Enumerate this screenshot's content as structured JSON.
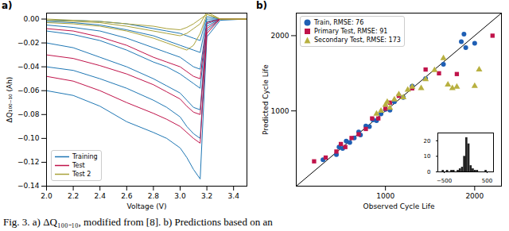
{
  "caption": "Fig. 3.   a) ΔQ₁₀₀₋₁₀, modified from [8]. b) Predictions based on an",
  "chart_data": [
    {
      "type": "line",
      "title": "a)",
      "x_label": "Voltage (V)",
      "y_label": "ΔQ₁₀₀₋₁₀ (Ah)",
      "x": [
        2.0,
        2.2,
        2.4,
        2.6,
        2.8,
        2.9,
        3.0,
        3.05,
        3.1,
        3.15,
        3.2,
        3.3,
        3.5
      ],
      "xlim": [
        2.0,
        3.5
      ],
      "xticks": [
        {
          "value": 2.0,
          "label": "2.0"
        },
        {
          "value": 2.2,
          "label": "2.2"
        },
        {
          "value": 2.4,
          "label": "2.4"
        },
        {
          "value": 2.6,
          "label": "2.6"
        },
        {
          "value": 2.8,
          "label": "2.8"
        },
        {
          "value": 3.0,
          "label": "3.0"
        },
        {
          "value": 3.2,
          "label": "3.2"
        },
        {
          "value": 3.4,
          "label": "3.4"
        }
      ],
      "ylim": [
        -0.14,
        0.005
      ],
      "yticks": [
        {
          "value": -0.14,
          "label": "−0.14"
        },
        {
          "value": -0.12,
          "label": "−0.12"
        },
        {
          "value": -0.1,
          "label": "−0.10"
        },
        {
          "value": -0.08,
          "label": "−0.08"
        },
        {
          "value": -0.06,
          "label": "−0.06"
        },
        {
          "value": -0.04,
          "label": "−0.04"
        },
        {
          "value": -0.02,
          "label": "−0.02"
        },
        {
          "value": 0,
          "label": "0.00"
        }
      ],
      "legend": "lower-left",
      "series": [
        {
          "name": "Training",
          "color": "#1f77b4",
          "curves": [
            [
              -0.06,
              -0.064,
              -0.073,
              -0.086,
              -0.095,
              -0.1,
              -0.108,
              -0.116,
              -0.126,
              -0.134,
              -0.015,
              -0.001,
              0.0
            ],
            [
              -0.04,
              -0.043,
              -0.05,
              -0.058,
              -0.068,
              -0.074,
              -0.082,
              -0.09,
              -0.096,
              -0.1,
              -0.01,
              0.0,
              0.0
            ],
            [
              -0.02,
              -0.024,
              -0.032,
              -0.04,
              -0.05,
              -0.056,
              -0.062,
              -0.068,
              -0.074,
              -0.076,
              -0.006,
              0.0,
              0.0
            ],
            [
              -0.01,
              -0.013,
              -0.018,
              -0.026,
              -0.036,
              -0.04,
              -0.046,
              -0.05,
              -0.054,
              -0.058,
              -0.004,
              0.0,
              0.0
            ],
            [
              -0.005,
              -0.007,
              -0.01,
              -0.016,
              -0.024,
              -0.028,
              -0.032,
              -0.036,
              -0.04,
              -0.042,
              -0.002,
              0.0,
              0.0
            ],
            [
              -0.002,
              -0.003,
              -0.005,
              -0.009,
              -0.014,
              -0.018,
              -0.022,
              -0.024,
              -0.026,
              -0.028,
              0.0,
              0.0,
              0.0
            ],
            [
              -0.001,
              -0.001,
              -0.002,
              -0.004,
              -0.008,
              -0.01,
              -0.012,
              -0.014,
              -0.016,
              -0.018,
              0.002,
              0.0,
              0.0
            ]
          ]
        },
        {
          "name": "Test",
          "color": "#c0134a",
          "curves": [
            [
              -0.048,
              -0.052,
              -0.06,
              -0.07,
              -0.079,
              -0.084,
              -0.09,
              -0.095,
              -0.1,
              -0.104,
              -0.012,
              0.0,
              0.0
            ],
            [
              -0.03,
              -0.033,
              -0.039,
              -0.046,
              -0.055,
              -0.061,
              -0.067,
              -0.073,
              -0.078,
              -0.08,
              -0.008,
              0.0,
              0.0
            ],
            [
              -0.008,
              -0.01,
              -0.015,
              -0.022,
              -0.032,
              -0.036,
              -0.04,
              -0.044,
              -0.048,
              -0.05,
              -0.003,
              0.0,
              0.0
            ]
          ]
        },
        {
          "name": "Test 2",
          "color": "#a9a23a",
          "curves": [
            [
              -0.003,
              -0.004,
              -0.006,
              -0.01,
              -0.016,
              -0.02,
              -0.024,
              -0.026,
              -0.022,
              -0.012,
              0.004,
              0.0,
              0.0
            ],
            [
              -0.001,
              -0.002,
              -0.003,
              -0.006,
              -0.01,
              -0.012,
              -0.014,
              -0.012,
              -0.008,
              -0.004,
              0.006,
              0.0,
              0.0
            ],
            [
              0.0,
              -0.001,
              -0.002,
              -0.004,
              -0.006,
              -0.008,
              -0.009,
              -0.007,
              -0.004,
              0.0,
              0.004,
              0.0,
              0.0
            ]
          ]
        }
      ]
    },
    {
      "type": "scatter",
      "title": "b)",
      "x_label": "Observed Cycle Life",
      "y_label": "Predicted Cycle Life",
      "xlim": [
        0,
        2300
      ],
      "xticks": [
        1000,
        2000
      ],
      "ylim": [
        0,
        2300
      ],
      "yticks": [
        1000,
        2000
      ],
      "legend": "upper-left",
      "series": [
        {
          "name": "Train, RMSE: 76",
          "color": "#1f5fb4",
          "marker": "circle",
          "values": [
            [
              300,
              350
            ],
            [
              450,
              420
            ],
            [
              480,
              520
            ],
            [
              520,
              500
            ],
            [
              560,
              600
            ],
            [
              600,
              580
            ],
            [
              650,
              640
            ],
            [
              700,
              720
            ],
            [
              720,
              680
            ],
            [
              780,
              800
            ],
            [
              820,
              790
            ],
            [
              860,
              880
            ],
            [
              900,
              870
            ],
            [
              950,
              960
            ],
            [
              1000,
              1020
            ],
            [
              1050,
              1010
            ],
            [
              1100,
              1120
            ],
            [
              1200,
              1180
            ],
            [
              1300,
              1330
            ],
            [
              1450,
              1430
            ],
            [
              1650,
              1620
            ],
            [
              1850,
              1920
            ],
            [
              1900,
              1840
            ],
            [
              2000,
              1900
            ],
            [
              1880,
              2020
            ]
          ]
        },
        {
          "name": "Primary Test, RMSE: 91",
          "color": "#c0134a",
          "marker": "square",
          "values": [
            [
              200,
              330
            ],
            [
              330,
              380
            ],
            [
              450,
              460
            ],
            [
              500,
              560
            ],
            [
              550,
              520
            ],
            [
              620,
              640
            ],
            [
              700,
              690
            ],
            [
              780,
              760
            ],
            [
              850,
              900
            ],
            [
              920,
              900
            ],
            [
              1000,
              1030
            ],
            [
              1050,
              1110
            ],
            [
              1150,
              1200
            ],
            [
              1300,
              1300
            ],
            [
              1450,
              1550
            ],
            [
              1600,
              1500
            ],
            [
              1800,
              1490
            ],
            [
              2200,
              2000
            ]
          ]
        },
        {
          "name": "Secondary Test, RMSE: 173",
          "color": "#b8b040",
          "marker": "triangle",
          "values": [
            [
              900,
              960
            ],
            [
              950,
              1000
            ],
            [
              1000,
              1080
            ],
            [
              1020,
              1120
            ],
            [
              1050,
              1040
            ],
            [
              1100,
              1150
            ],
            [
              1150,
              1220
            ],
            [
              1200,
              1180
            ],
            [
              1250,
              1280
            ],
            [
              1300,
              1320
            ],
            [
              1400,
              1300
            ],
            [
              1450,
              1420
            ],
            [
              1550,
              1540
            ],
            [
              1650,
              1700
            ],
            [
              1700,
              1350
            ],
            [
              1750,
              1300
            ],
            [
              1800,
              1320
            ],
            [
              2000,
              1330
            ],
            [
              2050,
              1550
            ]
          ]
        }
      ]
    },
    {
      "type": "histogram",
      "color": "#222222",
      "bins": [
        -550,
        -500,
        -450,
        -400,
        -350,
        -300,
        -250,
        -200,
        -150,
        -100,
        -50,
        0,
        50,
        100,
        150,
        200,
        250,
        300,
        350,
        400,
        450,
        500,
        550
      ],
      "counts": [
        1,
        0,
        1,
        0,
        1,
        1,
        0,
        1,
        2,
        3,
        10,
        22,
        18,
        4,
        2,
        1,
        1,
        0,
        0,
        0,
        1,
        0
      ],
      "xlim": [
        -650,
        650
      ],
      "xticks": [
        {
          "value": -500,
          "label": "−500"
        },
        {
          "value": 500,
          "label": "500"
        }
      ],
      "ylim": [
        0,
        25
      ],
      "yticks": [
        0,
        10,
        20
      ]
    }
  ]
}
